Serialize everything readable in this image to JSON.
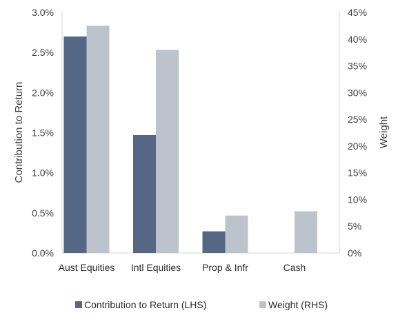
{
  "chart_data": {
    "type": "bar",
    "categories": [
      "Aust Equities",
      "Intl Equities",
      "Prop & Infr",
      "Cash"
    ],
    "series": [
      {
        "name": "Contribution to Return (LHS)",
        "axis": "left",
        "color": "#566786",
        "values": [
          0.027,
          0.0147,
          0.0027,
          null
        ]
      },
      {
        "name": "Weight (RHS)",
        "axis": "right",
        "color": "#bcc3cd",
        "values": [
          0.425,
          0.38,
          0.07,
          0.078
        ]
      }
    ],
    "ylabel_left": "Contribution to Return",
    "ylabel_right": "Weight",
    "ylim_left": [
      0,
      0.03
    ],
    "ylim_right": [
      0,
      0.45
    ],
    "yticks_left": [
      "0.0%",
      "0.5%",
      "1.0%",
      "1.5%",
      "2.0%",
      "2.5%",
      "3.0%"
    ],
    "yticks_right": [
      "0%",
      "5%",
      "10%",
      "15%",
      "20%",
      "25%",
      "30%",
      "35%",
      "40%",
      "45%"
    ],
    "grid": false,
    "legend_position": "bottom"
  }
}
